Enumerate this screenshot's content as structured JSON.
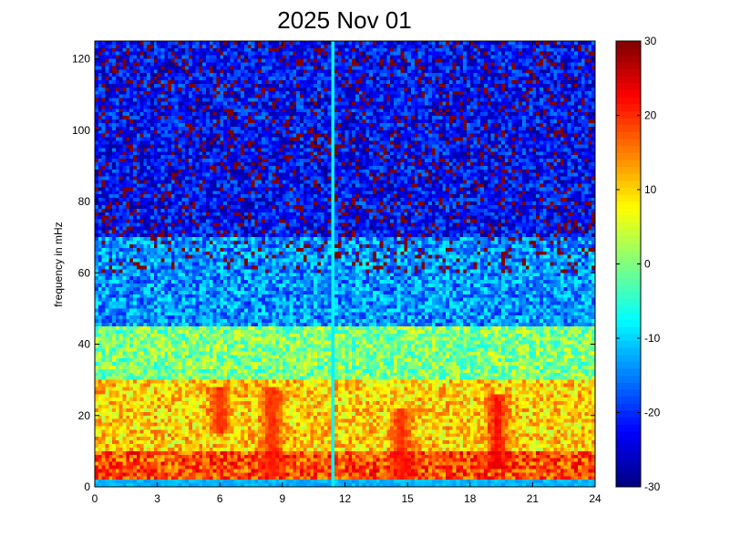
{
  "chart_data": {
    "type": "heatmap",
    "title": "2025 Nov 01",
    "xlabel": "",
    "ylabel": "frequency in mHz",
    "xlim": [
      0,
      24
    ],
    "ylim": [
      0,
      125
    ],
    "x_ticks": [
      0,
      3,
      6,
      9,
      12,
      15,
      18,
      21,
      24
    ],
    "y_ticks": [
      0,
      20,
      40,
      60,
      80,
      100,
      120
    ],
    "colorbar": {
      "range": [
        -30,
        30
      ],
      "ticks": [
        -30,
        -20,
        -10,
        0,
        10,
        20,
        30
      ],
      "colormap": "jet"
    },
    "grid": false,
    "trend": {
      "description_by_frequency": [
        {
          "frequency_range": [
            0,
            2
          ],
          "level": -12
        },
        {
          "frequency_range": [
            2,
            10
          ],
          "level": 18
        },
        {
          "frequency_range": [
            10,
            30
          ],
          "level": 10
        },
        {
          "frequency_range": [
            30,
            45
          ],
          "level": 0
        },
        {
          "frequency_range": [
            45,
            70
          ],
          "level": -14
        },
        {
          "frequency_range": [
            70,
            125
          ],
          "level": -22
        }
      ],
      "hot_spots": [
        {
          "time": 6.0,
          "frequency_range": [
            15,
            28
          ],
          "level": 22
        },
        {
          "time": 8.5,
          "frequency_range": [
            3,
            28
          ],
          "level": 22
        },
        {
          "time": 14.7,
          "frequency_range": [
            2,
            22
          ],
          "level": 22
        },
        {
          "time": 19.3,
          "frequency_range": [
            5,
            26
          ],
          "level": 24
        }
      ],
      "gap_time": 11.4
    }
  }
}
